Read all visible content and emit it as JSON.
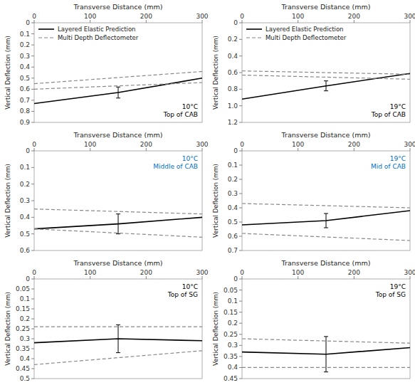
{
  "chart_data": [
    {
      "type": "line",
      "xlabel": "Transverse Distance (mm)",
      "ylabel": "Vertical Deflection (mm)",
      "annotation": {
        "text": "10°C\nTop of CAB",
        "color": "black"
      },
      "xlim": [
        0,
        300
      ],
      "ylim": [
        0.9,
        0
      ],
      "xticks": [
        0,
        100,
        200,
        300
      ],
      "yticks": [
        0,
        0.1,
        0.2,
        0.3,
        0.4,
        0.5,
        0.6,
        0.7,
        0.8,
        0.9
      ],
      "legend": "upper left",
      "series": [
        {
          "name": "Layered Elastic Prediction",
          "color": "#000000",
          "line_style": "solid",
          "x": [
            0,
            150,
            300
          ],
          "values": [
            0.73,
            0.63,
            0.5
          ],
          "errors_lower": [
            null,
            0.05,
            null
          ],
          "errors_upper": [
            null,
            0.05,
            null
          ]
        },
        {
          "name": "Multi Depth Deflectometer",
          "color": "#888888",
          "line_style": "dashed",
          "x": [
            0,
            300
          ],
          "values": [
            0.55,
            0.44
          ]
        },
        {
          "color": "#888888",
          "line_style": "dashed",
          "x": [
            0,
            300
          ],
          "values": [
            0.6,
            0.54
          ]
        }
      ]
    },
    {
      "type": "line",
      "xlabel": "Transverse Distance (mm)",
      "ylabel": "Vertical Deflection (mm)",
      "annotation": {
        "text": "19°C\nTop of CAB",
        "color": "black"
      },
      "xlim": [
        0,
        300
      ],
      "ylim": [
        1.2,
        0
      ],
      "xticks": [
        0,
        100,
        200,
        300
      ],
      "yticks": [
        0,
        0.2,
        0.4,
        0.6,
        0.8,
        {
          "value": 1.0,
          "label": "1.0"
        },
        1.2
      ],
      "legend": "upper left",
      "series": [
        {
          "name": "Layered Elastic Prediction",
          "color": "#000000",
          "line_style": "solid",
          "x": [
            0,
            150,
            300
          ],
          "values": [
            0.92,
            0.76,
            0.61
          ],
          "errors_lower": [
            null,
            0.06,
            null
          ],
          "errors_upper": [
            null,
            0.06,
            null
          ]
        },
        {
          "name": "Multi Depth Deflectometer",
          "color": "#888888",
          "line_style": "dashed",
          "x": [
            0,
            300
          ],
          "values": [
            0.58,
            0.62
          ]
        },
        {
          "color": "#888888",
          "line_style": "dashed",
          "x": [
            0,
            300
          ],
          "values": [
            0.63,
            0.68
          ]
        }
      ]
    },
    {
      "type": "line",
      "xlabel": "Transverse Distance (mm)",
      "ylabel": "Vertical Deflection (mm)",
      "annotation": {
        "text": "10°C\nMiddle of CAB",
        "color": "#0070C0"
      },
      "xlim": [
        0,
        300
      ],
      "ylim": [
        0.6,
        0
      ],
      "xticks": [
        0,
        100,
        200,
        300
      ],
      "yticks": [
        0,
        0.1,
        0.2,
        0.3,
        0.4,
        0.5,
        0.6
      ],
      "series": [
        {
          "name": "Layered Elastic Prediction",
          "color": "#000000",
          "line_style": "solid",
          "x": [
            0,
            150,
            300
          ],
          "values": [
            0.47,
            0.44,
            0.4
          ],
          "errors_lower": [
            null,
            0.06,
            null
          ],
          "errors_upper": [
            null,
            0.06,
            null
          ]
        },
        {
          "name": "Multi Depth Deflectometer",
          "color": "#888888",
          "line_style": "dashed",
          "x": [
            0,
            300
          ],
          "values": [
            0.35,
            0.38
          ]
        },
        {
          "color": "#888888",
          "line_style": "dashed",
          "x": [
            0,
            300
          ],
          "values": [
            0.47,
            0.52
          ]
        }
      ]
    },
    {
      "type": "line",
      "xlabel": "Transverse Distance (mm)",
      "ylabel": "Vertical Deflection (mm)",
      "annotation": {
        "text": "19°C\nMid of CAB",
        "color": "#0070C0"
      },
      "xlim": [
        0,
        300
      ],
      "ylim": [
        0.7,
        0
      ],
      "xticks": [
        0,
        100,
        200,
        300
      ],
      "yticks": [
        0,
        0.1,
        0.2,
        0.3,
        0.4,
        0.5,
        0.6,
        0.7
      ],
      "series": [
        {
          "name": "Layered Elastic Prediction",
          "color": "#000000",
          "line_style": "solid",
          "x": [
            0,
            150,
            300
          ],
          "values": [
            0.52,
            0.49,
            0.42
          ],
          "errors_lower": [
            null,
            0.05,
            null
          ],
          "errors_upper": [
            null,
            0.05,
            null
          ]
        },
        {
          "name": "Multi Depth Deflectometer",
          "color": "#888888",
          "line_style": "dashed",
          "x": [
            0,
            300
          ],
          "values": [
            0.37,
            0.4
          ]
        },
        {
          "color": "#888888",
          "line_style": "dashed",
          "x": [
            0,
            300
          ],
          "values": [
            0.58,
            0.63
          ]
        }
      ]
    },
    {
      "type": "line",
      "xlabel": "Transverse Distance (mm)",
      "ylabel": "Vertical Deflection (mm)",
      "annotation": {
        "text": "10°C\nTop of SG",
        "color": "black"
      },
      "xlim": [
        0,
        300
      ],
      "ylim": [
        0.5,
        0
      ],
      "xticks": [
        0,
        100,
        200,
        300
      ],
      "yticks": [
        0,
        0.05,
        0.1,
        0.15,
        0.2,
        0.25,
        0.3,
        0.35,
        0.4,
        0.45,
        0.5
      ],
      "series": [
        {
          "name": "Layered Elastic Prediction",
          "color": "#000000",
          "line_style": "solid",
          "x": [
            0,
            150,
            300
          ],
          "values": [
            0.32,
            0.3,
            0.31
          ],
          "errors_lower": [
            null,
            0.07,
            null
          ],
          "errors_upper": [
            null,
            0.07,
            null
          ]
        },
        {
          "name": "Multi Depth Deflectometer",
          "color": "#888888",
          "line_style": "dashed",
          "x": [
            0,
            300
          ],
          "values": [
            0.24,
            0.24
          ]
        },
        {
          "color": "#888888",
          "line_style": "dashed",
          "x": [
            0,
            300
          ],
          "values": [
            0.43,
            0.36
          ]
        }
      ]
    },
    {
      "type": "line",
      "xlabel": "Transverse Distance (mm)",
      "ylabel": "Vertical Deflection (mm)",
      "annotation": {
        "text": "19°C\nTop of SG",
        "color": "black"
      },
      "xlim": [
        0,
        300
      ],
      "ylim": [
        0.45,
        0
      ],
      "xticks": [
        0,
        100,
        200,
        300
      ],
      "yticks": [
        0,
        0.05,
        0.1,
        0.15,
        0.2,
        0.25,
        0.3,
        0.35,
        0.4,
        0.45
      ],
      "series": [
        {
          "name": "Layered Elastic Prediction",
          "color": "#000000",
          "line_style": "solid",
          "x": [
            0,
            150,
            300
          ],
          "values": [
            0.33,
            0.34,
            0.31
          ],
          "errors_lower": [
            null,
            0.08,
            null
          ],
          "errors_upper": [
            null,
            0.08,
            null
          ]
        },
        {
          "name": "Multi Depth Deflectometer",
          "color": "#888888",
          "line_style": "dashed",
          "x": [
            0,
            300
          ],
          "values": [
            0.27,
            0.29
          ]
        },
        {
          "color": "#888888",
          "line_style": "dashed",
          "x": [
            0,
            300
          ],
          "values": [
            0.4,
            0.4
          ]
        }
      ]
    }
  ]
}
